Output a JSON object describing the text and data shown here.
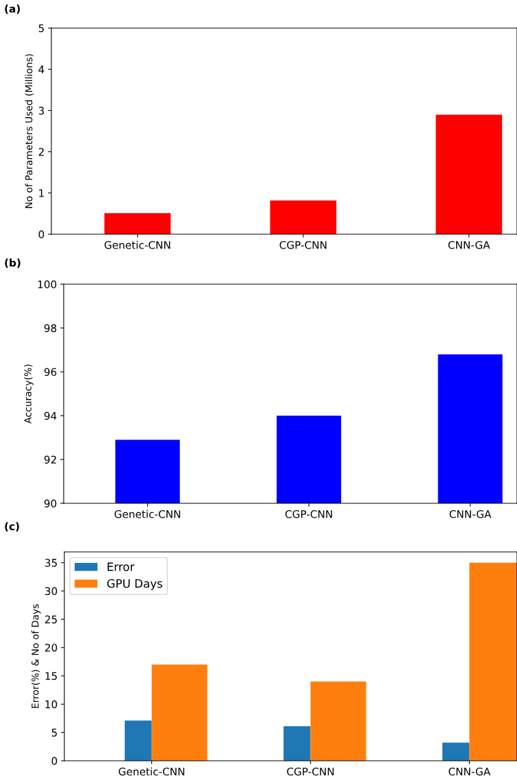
{
  "chart_data": [
    {
      "type": "bar",
      "title": "(a)",
      "ylabel": "No of Parameters Used (Millions)",
      "categories": [
        "Genetic-CNN",
        "CGP-CNN",
        "CNN-GA"
      ],
      "values": [
        0.51,
        0.82,
        2.9
      ],
      "color": "#ff0000",
      "ylim": [
        0,
        5
      ],
      "yticks": [
        0,
        1,
        2,
        3,
        4,
        5
      ]
    },
    {
      "type": "bar",
      "title": "(b)",
      "ylabel": "Accuracy(%)",
      "categories": [
        "Genetic-CNN",
        "CGP-CNN",
        "CNN-GA"
      ],
      "values": [
        92.9,
        94.0,
        96.8
      ],
      "color": "#0000ff",
      "ylim": [
        90,
        100
      ],
      "yticks": [
        90,
        92,
        94,
        96,
        98,
        100
      ]
    },
    {
      "type": "bar",
      "title": "(c)",
      "ylabel": "Error(%) & No of Days",
      "categories": [
        "Genetic-CNN",
        "CGP-CNN",
        "CNN-GA"
      ],
      "ylim": [
        0,
        36.9
      ],
      "yticks": [
        0,
        5,
        10,
        15,
        20,
        25,
        30,
        35
      ],
      "legend": "top left",
      "series": [
        {
          "name": "Error",
          "color": "#1f77b4",
          "values": [
            7.1,
            6.1,
            3.2
          ]
        },
        {
          "name": "GPU Days",
          "color": "#ff7f0e",
          "values": [
            17,
            14,
            35
          ]
        }
      ]
    }
  ]
}
